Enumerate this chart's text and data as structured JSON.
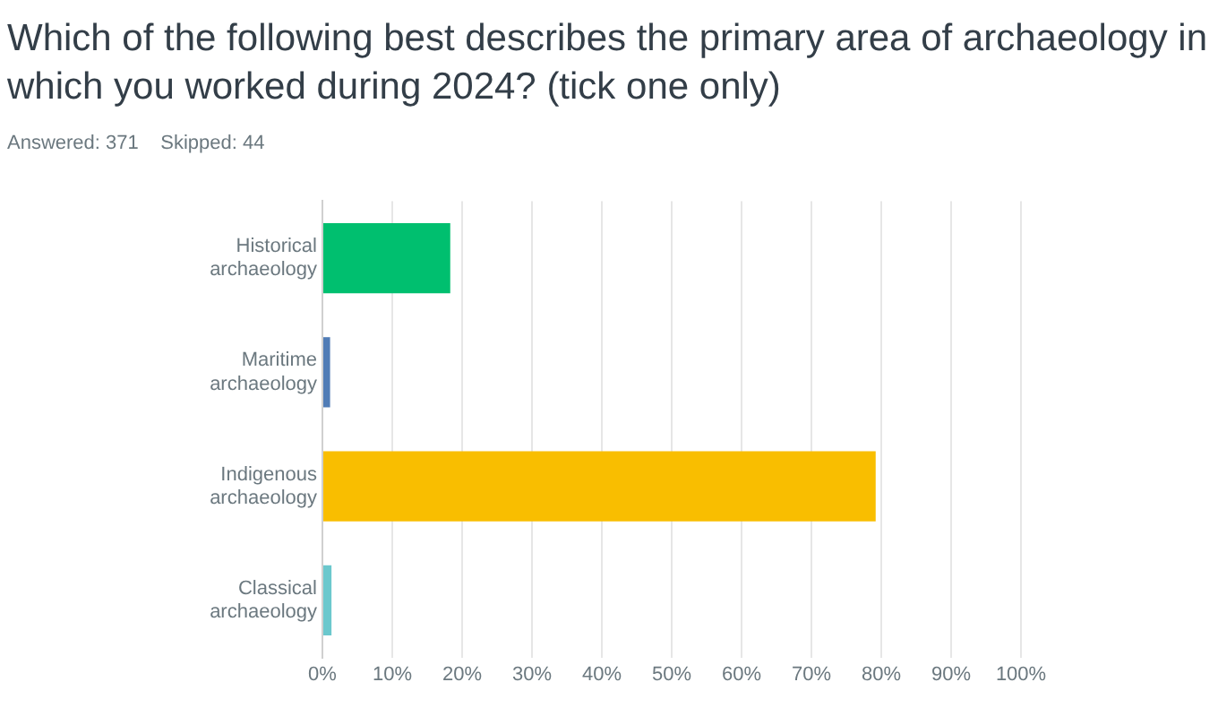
{
  "chart_data": {
    "type": "bar",
    "orientation": "horizontal",
    "title": "Which of the following best describes the primary area of archaeology in which you worked during 2024? (tick one only)",
    "subtitle": "Answered: 371    Skipped: 44",
    "categories": [
      "Historical archaeology",
      "Maritime archaeology",
      "Indigenous archaeology",
      "Classical archaeology"
    ],
    "values": [
      18.3,
      1.1,
      79.2,
      1.3
    ],
    "colors": [
      "#00bf6f",
      "#507cb6",
      "#f9be00",
      "#6bc8cd"
    ],
    "xlim": [
      0,
      100
    ],
    "xticks": [
      {
        "value": 0,
        "label": "0%"
      },
      {
        "value": 10,
        "label": "10%"
      },
      {
        "value": 20,
        "label": "20%"
      },
      {
        "value": 30,
        "label": "30%"
      },
      {
        "value": 40,
        "label": "40%"
      },
      {
        "value": 50,
        "label": "50%"
      },
      {
        "value": 60,
        "label": "60%"
      },
      {
        "value": 70,
        "label": "70%"
      },
      {
        "value": 80,
        "label": "80%"
      },
      {
        "value": 90,
        "label": "90%"
      },
      {
        "value": 100,
        "label": "100%"
      }
    ],
    "grid": "x",
    "legend": false
  }
}
